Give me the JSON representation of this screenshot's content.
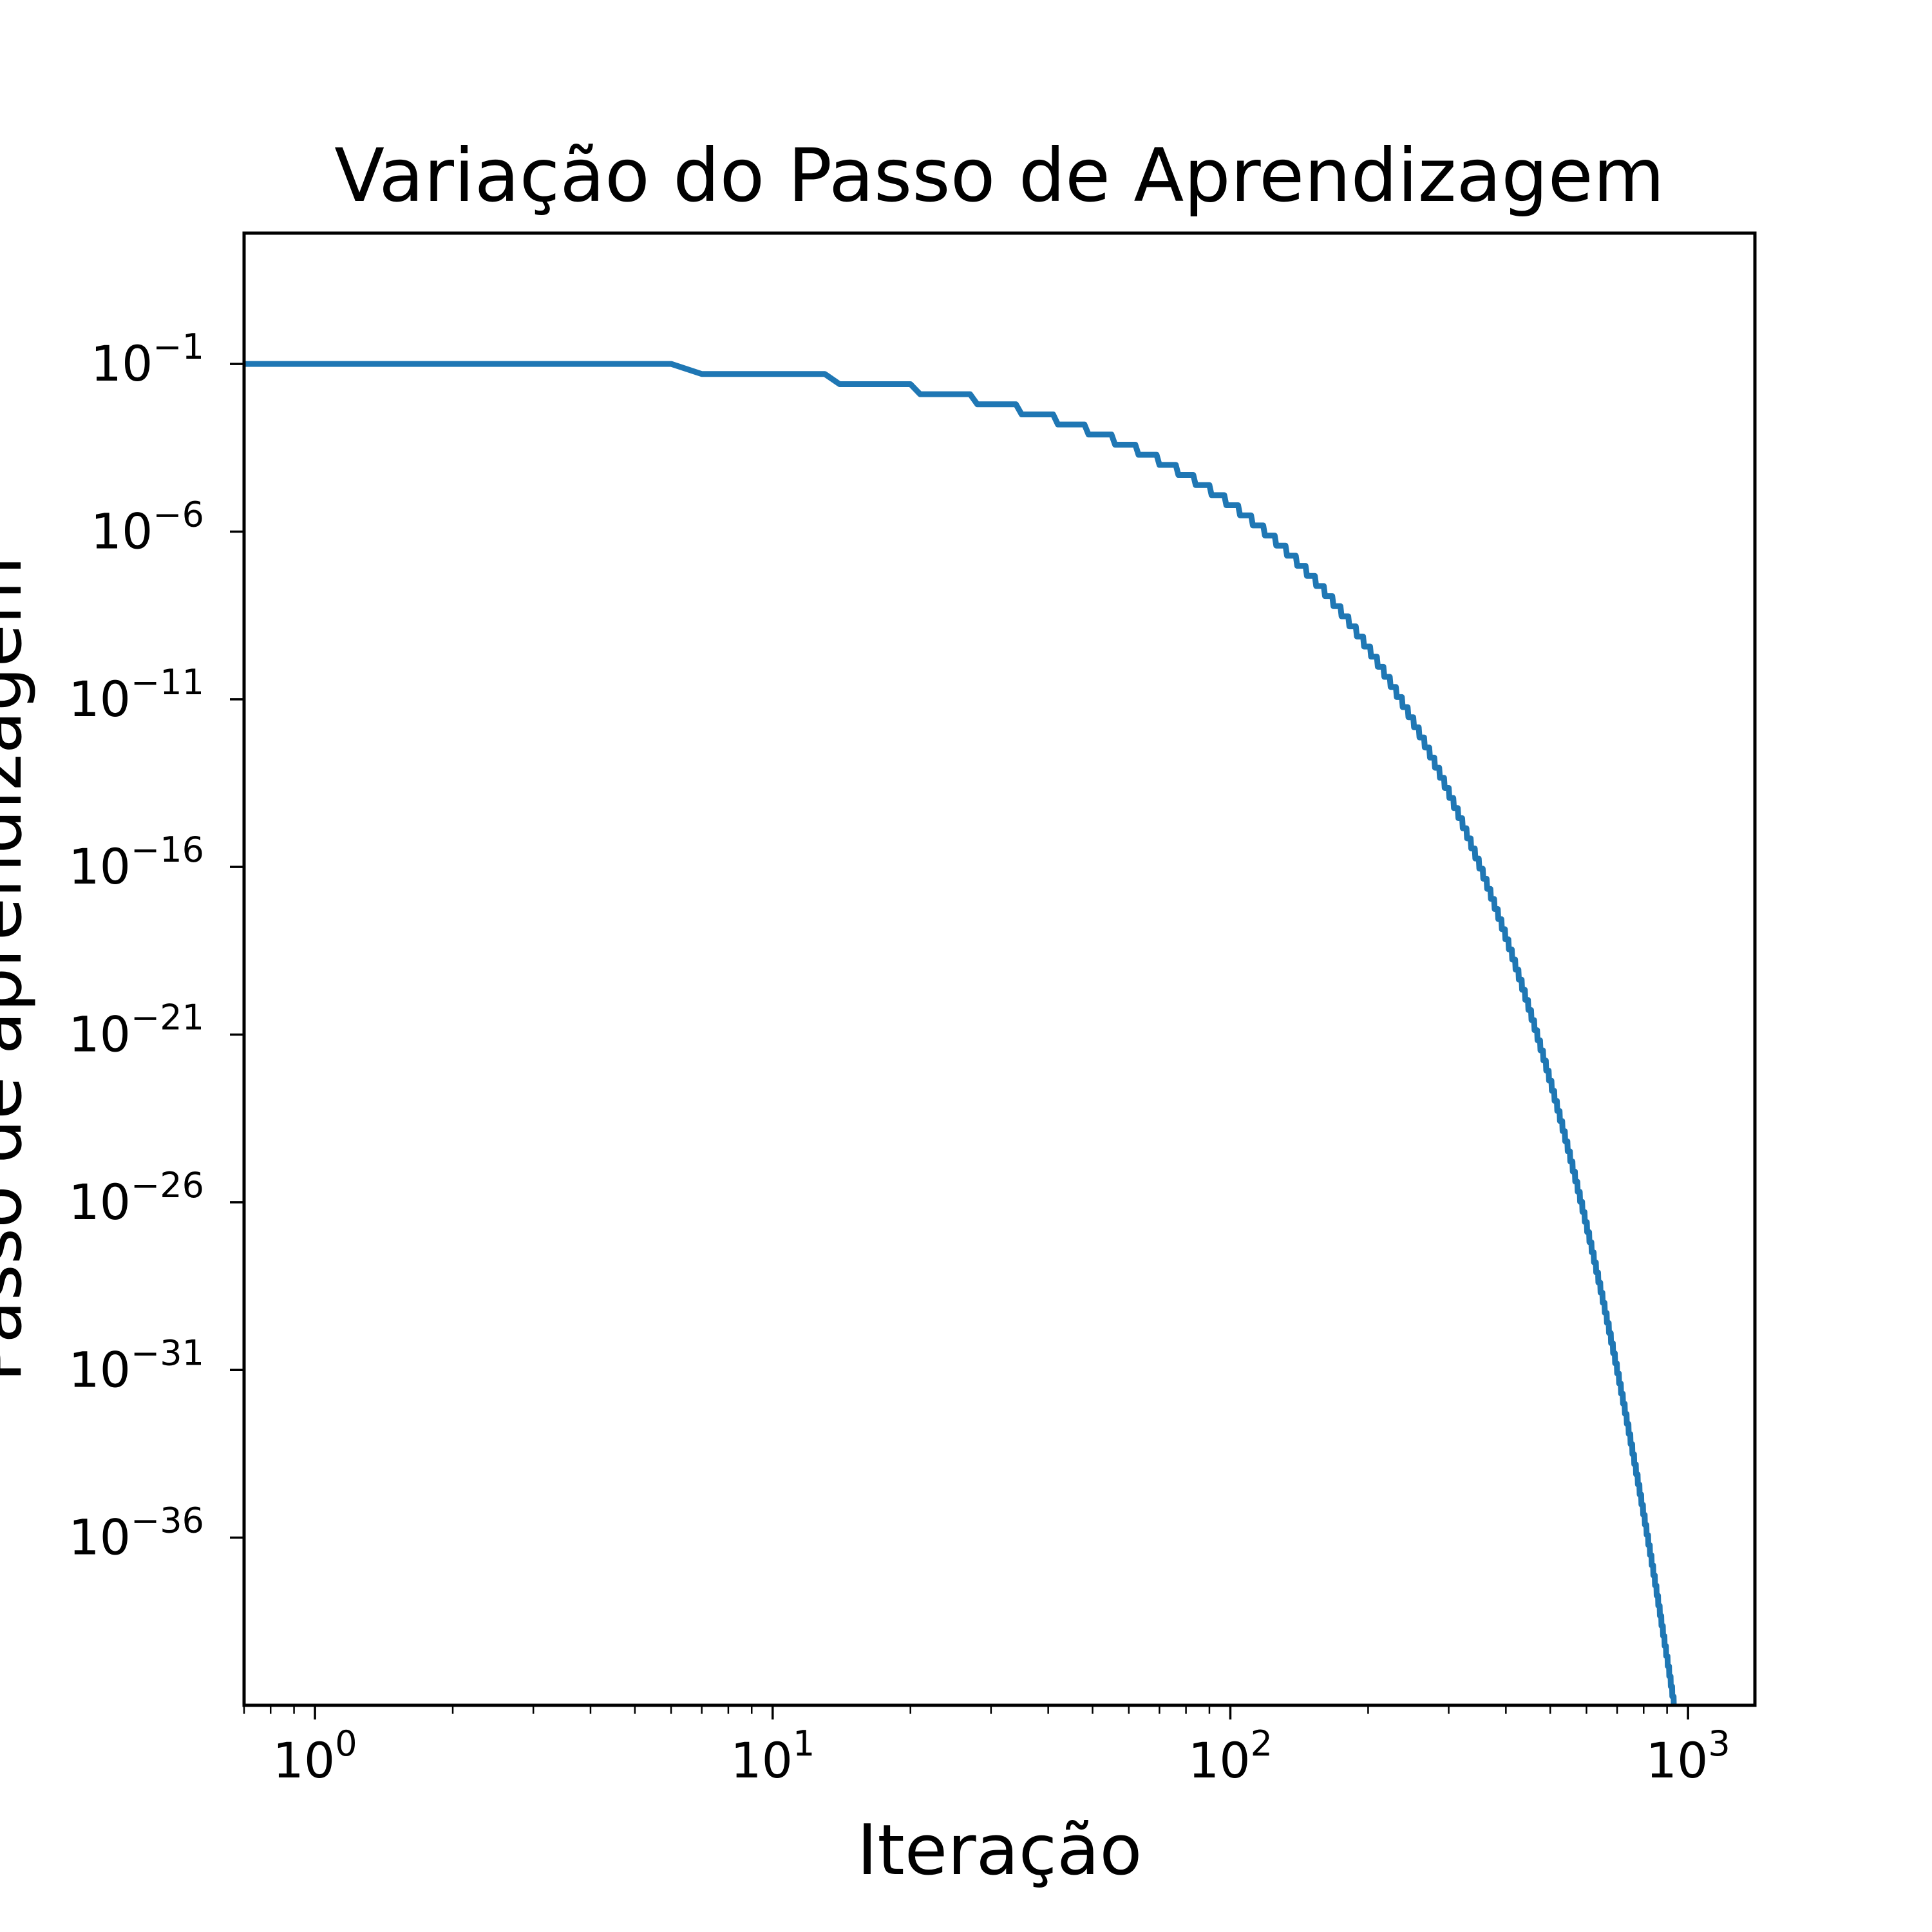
{
  "chart_data": {
    "type": "line",
    "title": "Variação do Passo de Aprendizagem",
    "xlabel": "Iteração",
    "ylabel": "Passo de aprendizagem",
    "xscale": "log",
    "yscale": "log",
    "xlim": [
      0.7,
      1400
    ],
    "ylim_exp": [
      -41,
      2.9
    ],
    "x_ticks": [
      {
        "base": "10",
        "exp": "0",
        "value": 1
      },
      {
        "base": "10",
        "exp": "1",
        "value": 10
      },
      {
        "base": "10",
        "exp": "2",
        "value": 100
      },
      {
        "base": "10",
        "exp": "3",
        "value": 1000
      }
    ],
    "y_ticks": [
      {
        "base": "10",
        "exp": "−1",
        "value": -1
      },
      {
        "base": "10",
        "exp": "−6",
        "value": -6
      },
      {
        "base": "10",
        "exp": "−11",
        "value": -11
      },
      {
        "base": "10",
        "exp": "−16",
        "value": -16
      },
      {
        "base": "10",
        "exp": "−21",
        "value": -21
      },
      {
        "base": "10",
        "exp": "−26",
        "value": -26
      },
      {
        "base": "10",
        "exp": "−31",
        "value": -31
      },
      {
        "base": "10",
        "exp": "−36",
        "value": -36
      }
    ],
    "series": [
      {
        "color": "#1f77b4",
        "step_decay": {
          "initial_value": 0.1,
          "factor": 0.5,
          "step_every_iterations": 7
        },
        "x_range": [
          0,
          1000
        ]
      }
    ],
    "grid": false,
    "legend": "none"
  }
}
